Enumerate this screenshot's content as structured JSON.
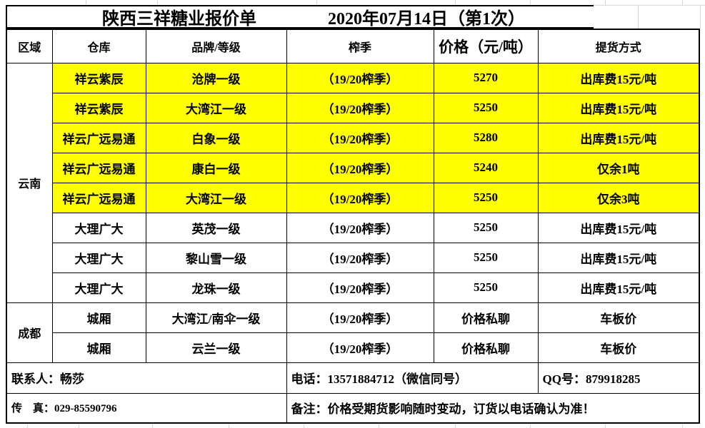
{
  "sheet": {
    "title": "陕西三祥糖业报价单",
    "date": "2020年07月14日（第1次）",
    "columns": [
      "区域",
      "仓库",
      "品牌/等级",
      "榨季",
      "价格（元/吨）",
      "提货方式"
    ],
    "regions": [
      {
        "name": "云南",
        "rows": 8
      },
      {
        "name": "成都",
        "rows": 2
      }
    ],
    "rows": [
      {
        "warehouse": "祥云紫辰",
        "brand": "沧牌一级",
        "season": "（19/20榨季）",
        "price": "5270",
        "pickup": "出库费15元/吨",
        "highlight": true
      },
      {
        "warehouse": "祥云紫辰",
        "brand": "大湾江一级",
        "season": "（19/20榨季）",
        "price": "5250",
        "pickup": "出库费15元/吨",
        "highlight": true
      },
      {
        "warehouse": "祥云广远易通",
        "brand": "白象一级",
        "season": "（19/20榨季）",
        "price": "5280",
        "pickup": "出库费15元/吨",
        "highlight": true
      },
      {
        "warehouse": "祥云广远易通",
        "brand": "康白一级",
        "season": "（19/20榨季）",
        "price": "5240",
        "pickup": "仅余1吨",
        "highlight": true
      },
      {
        "warehouse": "祥云广远易通",
        "brand": "大湾江一级",
        "season": "（19/20榨季）",
        "price": "5250",
        "pickup": "仅余3吨",
        "highlight": true
      },
      {
        "warehouse": "大理广大",
        "brand": "英茂一级",
        "season": "（19/20榨季）",
        "price": "5250",
        "pickup": "出库费15元/吨",
        "highlight": false
      },
      {
        "warehouse": "大理广大",
        "brand": "黎山雪一级",
        "season": "（19/20榨季）",
        "price": "5250",
        "pickup": "出库费15元/吨",
        "highlight": false
      },
      {
        "warehouse": "大理广大",
        "brand": "龙珠一级",
        "season": "（19/20榨季）",
        "price": "5250",
        "pickup": "出库费15元/吨",
        "highlight": false
      },
      {
        "warehouse": "城厢",
        "brand": "大湾江/南伞一级",
        "season": "（19/20榨季）",
        "price": "价格私聊",
        "pickup": "车板价",
        "highlight": false
      },
      {
        "warehouse": "城厢",
        "brand": "云兰一级",
        "season": "（19/20榨季）",
        "price": "价格私聊",
        "pickup": "车板价",
        "highlight": false
      }
    ],
    "footer": {
      "contact": "联系人：畅莎",
      "phone": "电话：13571884712（微信同号）",
      "qq": "QQ号：879918285",
      "fax": "传　真：029-85590796",
      "note": "备注：价格受期货影响随时变动，订货以电话确认为准！"
    },
    "colors": {
      "highlight": "#ffff00",
      "border": "#000000",
      "gridline": "#d9d9d9"
    }
  }
}
